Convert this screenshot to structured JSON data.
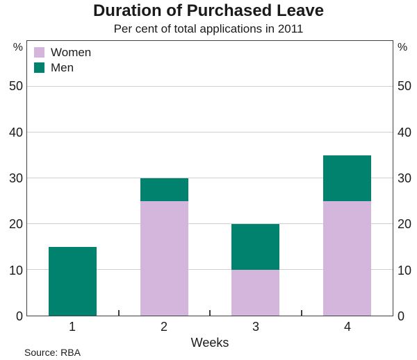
{
  "chart_data": {
    "type": "bar",
    "stacked": true,
    "title": "Duration of Purchased Leave",
    "subtitle": "Per cent of total applications in 2011",
    "categories": [
      "1",
      "2",
      "3",
      "4"
    ],
    "series": [
      {
        "name": "Women",
        "color": "#d4b5dc",
        "values": [
          0,
          25,
          10,
          25
        ]
      },
      {
        "name": "Men",
        "color": "#00826f",
        "values": [
          15,
          5,
          10,
          10
        ]
      }
    ],
    "totals": [
      15,
      30,
      20,
      35
    ],
    "xlabel": "Weeks",
    "ylabel_unit": "%",
    "ylim": [
      0,
      60
    ],
    "yticks": [
      0,
      10,
      20,
      30,
      40,
      50
    ],
    "grid": true,
    "legend_position": "top-left",
    "source": "Source: RBA",
    "colors": {
      "women": "#d4b5dc",
      "men": "#00826f",
      "gridline": "#cfcfcf",
      "frame": "#3f3f3f",
      "text": "#1a1a1a"
    }
  }
}
